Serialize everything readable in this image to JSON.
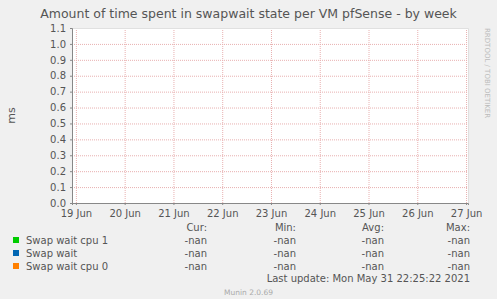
{
  "chart_data": {
    "type": "line",
    "title": "Amount of time spent in swapwait state per VM pfSense - by week",
    "y_label": "ms",
    "side_label": "RRDTOOL / TOBI OETIKER",
    "x": [
      19,
      20,
      21,
      22,
      23,
      24,
      25,
      26,
      27
    ],
    "xlim": [
      18.92,
      27.04
    ],
    "xticks": [
      {
        "value": 19,
        "label": "19 Jun"
      },
      {
        "value": 20,
        "label": "20 Jun"
      },
      {
        "value": 21,
        "label": "21 Jun"
      },
      {
        "value": 22,
        "label": "22 Jun"
      },
      {
        "value": 23,
        "label": "23 Jun"
      },
      {
        "value": 24,
        "label": "24 Jun"
      },
      {
        "value": 25,
        "label": "25 Jun"
      },
      {
        "value": 26,
        "label": "26 Jun"
      },
      {
        "value": 27,
        "label": "27 Jun"
      }
    ],
    "ylim": [
      0,
      1.1
    ],
    "yticks": [
      {
        "value": 0,
        "label": "0.0"
      },
      0.1,
      0.2,
      0.3,
      0.4,
      0.5,
      0.6,
      0.7,
      0.8,
      0.9,
      {
        "value": 1,
        "label": "1.0"
      },
      1.1
    ],
    "grid": true,
    "legend_columns": [
      "Cur:",
      "Min:",
      "Avg:",
      "Max:"
    ],
    "series": [
      {
        "name": "Swap wait cpu 1",
        "color": "#00cc00",
        "values": [
          null,
          null,
          null,
          null,
          null,
          null,
          null,
          null,
          null
        ],
        "stats": [
          "-nan",
          "-nan",
          "-nan",
          "-nan"
        ]
      },
      {
        "name": "Swap wait",
        "color": "#0066b3",
        "values": [
          null,
          null,
          null,
          null,
          null,
          null,
          null,
          null,
          null
        ],
        "stats": [
          "-nan",
          "-nan",
          "-nan",
          "-nan"
        ]
      },
      {
        "name": "Swap wait cpu 0",
        "color": "#ff8000",
        "values": [
          null,
          null,
          null,
          null,
          null,
          null,
          null,
          null,
          null
        ],
        "stats": [
          "-nan",
          "-nan",
          "-nan",
          "-nan"
        ]
      }
    ],
    "last_update": "Last update: Mon May 31 22:25:22 2021",
    "footer": "Munin 2.0.69"
  }
}
